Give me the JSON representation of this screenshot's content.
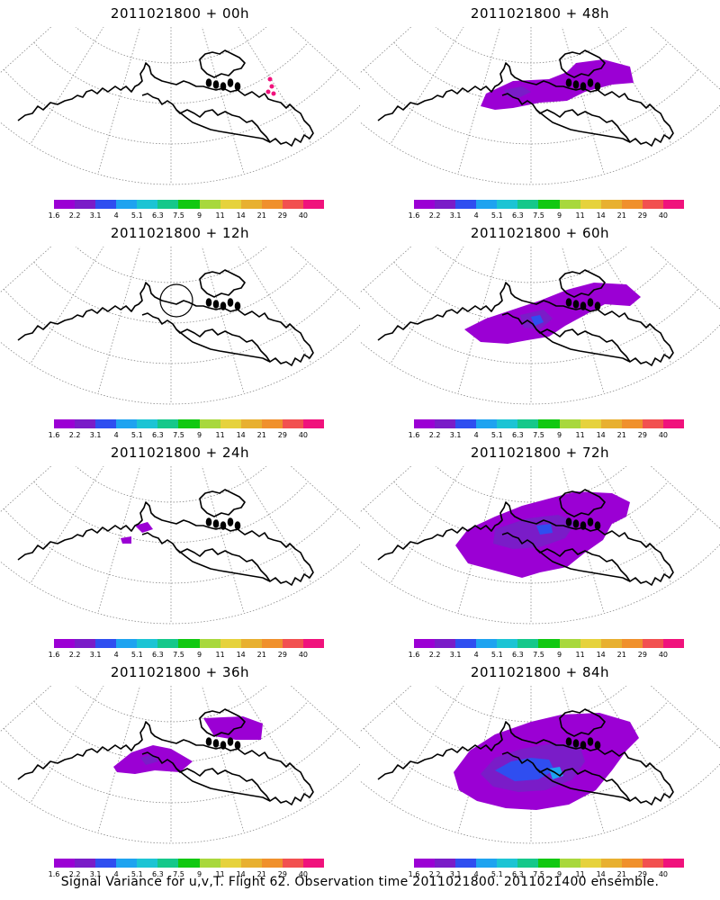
{
  "panels": [
    {
      "title": "2011021800 + 00h"
    },
    {
      "title": "2011021800 + 48h"
    },
    {
      "title": "2011021800 + 12h"
    },
    {
      "title": "2011021800 + 60h"
    },
    {
      "title": "2011021800 + 24h"
    },
    {
      "title": "2011021800 + 72h"
    },
    {
      "title": "2011021800 + 36h"
    },
    {
      "title": "2011021800 + 84h"
    }
  ],
  "colorbar": {
    "labels": [
      "1.6",
      "2.2",
      "3.1",
      "4",
      "5.1",
      "6.3",
      "7.5",
      "9",
      "11",
      "14",
      "21",
      "29",
      "40"
    ],
    "colors": [
      "#9b00d4",
      "#7a1cc8",
      "#2f4ef0",
      "#1ea3f0",
      "#1cc4d4",
      "#15c88a",
      "#11c811",
      "#a8d83c",
      "#e6d23c",
      "#e8b030",
      "#f0902c",
      "#f25050",
      "#f0127c"
    ]
  },
  "caption": "Signal Variance for u,v,T. Flight 62. Observation time 2011021800. 2011021400 ensemble."
}
